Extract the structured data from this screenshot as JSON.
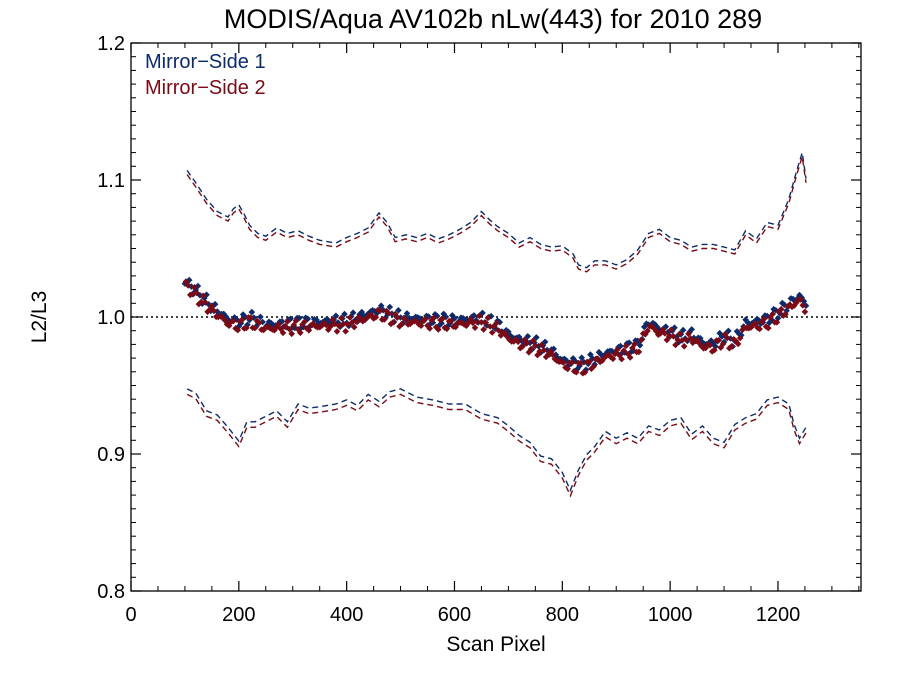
{
  "chart_data": {
    "type": "scatter",
    "title": "MODIS/Aqua AV102b nLw(443) for 2010 289",
    "xlabel": "Scan Pixel",
    "ylabel": "L2/L3",
    "xlim": [
      0,
      1354
    ],
    "ylim": [
      0.8,
      1.2
    ],
    "xticks": [
      0,
      200,
      400,
      600,
      800,
      1000,
      1200
    ],
    "xtick_labels": [
      "0",
      "200",
      "400",
      "600",
      "800",
      "1000",
      "1200"
    ],
    "yticks": [
      0.8,
      0.9,
      1.0,
      1.1,
      1.2
    ],
    "ytick_labels": [
      "0.8",
      "0.9",
      "1.0",
      "1.1",
      "1.2"
    ],
    "reference_line": 1.0,
    "grid": false,
    "legend_position": "top-left",
    "colors": {
      "ms1": "#0d2b6b",
      "ms2": "#7a0a16",
      "ref": "#000000"
    },
    "legend": [
      "Mirror−Side 1",
      "Mirror−Side 2"
    ],
    "mean_anchors": {
      "x": [
        100,
        120,
        140,
        160,
        180,
        200,
        220,
        250,
        300,
        350,
        400,
        440,
        460,
        500,
        550,
        600,
        650,
        680,
        700,
        720,
        750,
        780,
        800,
        820,
        840,
        860,
        880,
        900,
        920,
        940,
        960,
        980,
        1000,
        1020,
        1040,
        1060,
        1080,
        1100,
        1120,
        1140,
        1160,
        1180,
        1200,
        1220,
        1240,
        1250
      ],
      "y": [
        1.025,
        1.018,
        1.01,
        1.003,
        0.997,
        0.995,
        0.998,
        0.993,
        0.994,
        0.995,
        0.996,
        1.001,
        1.004,
        0.998,
        0.997,
        0.996,
        0.998,
        0.993,
        0.986,
        0.982,
        0.979,
        0.974,
        0.967,
        0.965,
        0.964,
        0.968,
        0.972,
        0.974,
        0.976,
        0.978,
        0.995,
        0.99,
        0.988,
        0.984,
        0.986,
        0.98,
        0.979,
        0.985,
        0.981,
        0.994,
        0.995,
        0.997,
        1.002,
        1.008,
        1.014,
        1.008
      ]
    },
    "upper_band": {
      "x": [
        104,
        120,
        140,
        160,
        180,
        190,
        200,
        210,
        220,
        235,
        250,
        270,
        290,
        310,
        330,
        350,
        380,
        400,
        420,
        440,
        460,
        475,
        490,
        510,
        530,
        550,
        570,
        590,
        610,
        630,
        650,
        665,
        680,
        700,
        720,
        740,
        760,
        780,
        800,
        820,
        830,
        845,
        860,
        880,
        900,
        920,
        940,
        960,
        980,
        1000,
        1020,
        1040,
        1060,
        1080,
        1100,
        1120,
        1140,
        1160,
        1180,
        1200,
        1220,
        1235,
        1245,
        1252
      ],
      "y": [
        1.106,
        1.097,
        1.085,
        1.076,
        1.072,
        1.078,
        1.081,
        1.074,
        1.066,
        1.06,
        1.058,
        1.064,
        1.06,
        1.062,
        1.058,
        1.055,
        1.053,
        1.057,
        1.06,
        1.064,
        1.075,
        1.068,
        1.057,
        1.059,
        1.057,
        1.06,
        1.056,
        1.059,
        1.063,
        1.068,
        1.076,
        1.07,
        1.065,
        1.06,
        1.053,
        1.057,
        1.052,
        1.05,
        1.051,
        1.045,
        1.037,
        1.035,
        1.04,
        1.04,
        1.037,
        1.041,
        1.048,
        1.06,
        1.063,
        1.057,
        1.055,
        1.05,
        1.052,
        1.052,
        1.05,
        1.048,
        1.062,
        1.056,
        1.068,
        1.066,
        1.085,
        1.106,
        1.119,
        1.1
      ]
    },
    "lower_band": {
      "x": [
        104,
        120,
        140,
        160,
        180,
        200,
        215,
        230,
        250,
        270,
        290,
        310,
        330,
        350,
        380,
        400,
        420,
        440,
        460,
        480,
        500,
        530,
        560,
        590,
        620,
        650,
        680,
        700,
        720,
        740,
        760,
        780,
        800,
        815,
        830,
        845,
        860,
        880,
        900,
        920,
        940,
        960,
        980,
        1000,
        1020,
        1040,
        1060,
        1080,
        1100,
        1120,
        1140,
        1160,
        1180,
        1200,
        1220,
        1230,
        1240,
        1252
      ],
      "y": [
        0.946,
        0.943,
        0.93,
        0.927,
        0.918,
        0.908,
        0.922,
        0.922,
        0.926,
        0.93,
        0.922,
        0.935,
        0.932,
        0.933,
        0.935,
        0.938,
        0.934,
        0.942,
        0.937,
        0.944,
        0.946,
        0.94,
        0.938,
        0.935,
        0.935,
        0.928,
        0.925,
        0.919,
        0.912,
        0.907,
        0.897,
        0.895,
        0.885,
        0.872,
        0.887,
        0.898,
        0.904,
        0.915,
        0.91,
        0.914,
        0.91,
        0.919,
        0.916,
        0.923,
        0.925,
        0.913,
        0.919,
        0.91,
        0.907,
        0.92,
        0.925,
        0.928,
        0.938,
        0.94,
        0.935,
        0.92,
        0.91,
        0.918
      ]
    },
    "series": [
      {
        "name": "Mirror−Side 1",
        "color": "#0d2b6b",
        "marker": "diamond",
        "mean_offset": 0.0015,
        "upper_offset": 0.001,
        "lower_offset": 0.0015
      },
      {
        "name": "Mirror−Side 2",
        "color": "#7a0a16",
        "marker": "diamond",
        "mean_offset": -0.0015,
        "upper_offset": -0.002,
        "lower_offset": -0.0025
      }
    ],
    "sample_x_range": [
      100,
      1252
    ],
    "sample_step": 4
  }
}
